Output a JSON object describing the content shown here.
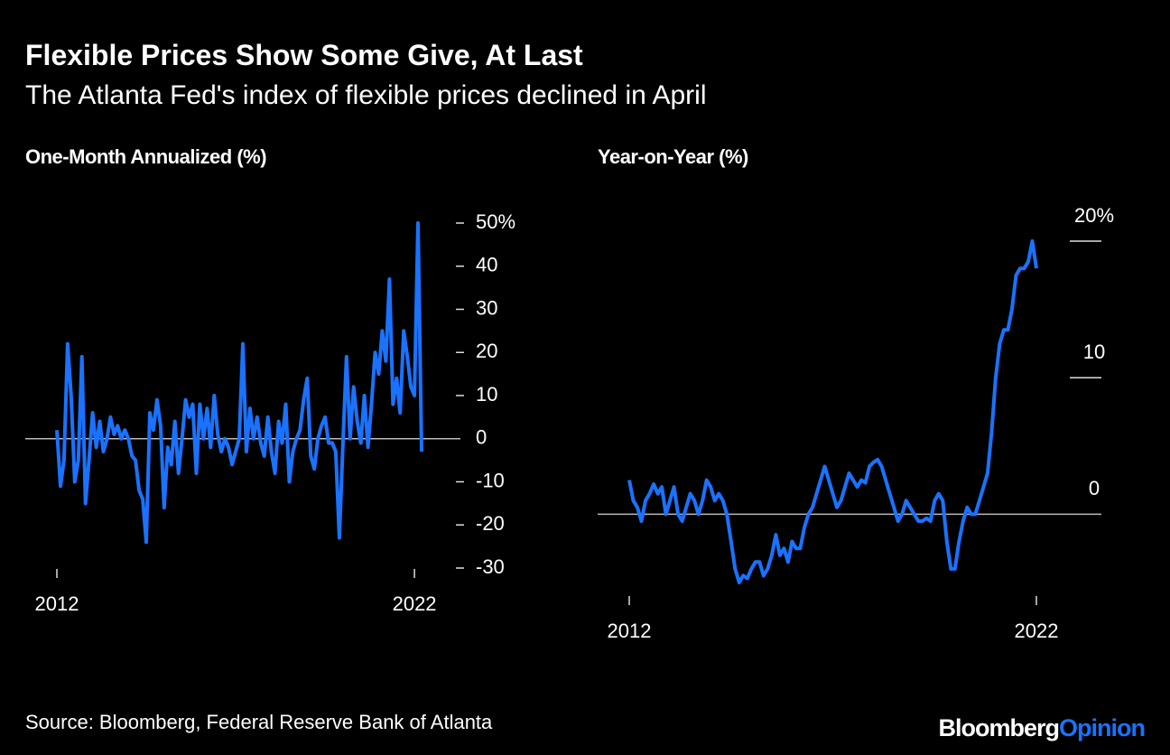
{
  "title": "Flexible Prices Show Some Give, At Last",
  "subtitle": "The Atlanta Fed's index of flexible prices declined in April",
  "source": "Source: Bloomberg, Federal Reserve Bank of Atlanta",
  "logo": {
    "name": "Bloomberg",
    "suffix": "Opinion"
  },
  "chart_data": [
    {
      "type": "line",
      "title": "One-Month Annualized (%)",
      "color": "#1a72ff",
      "x": [
        2012,
        2012.1,
        2012.2,
        2012.3,
        2012.4,
        2012.5,
        2012.6,
        2012.7,
        2012.8,
        2012.9,
        2013,
        2013.1,
        2013.2,
        2013.3,
        2013.4,
        2013.5,
        2013.6,
        2013.7,
        2013.8,
        2013.9,
        2014,
        2014.1,
        2014.2,
        2014.3,
        2014.4,
        2014.5,
        2014.6,
        2014.7,
        2014.8,
        2014.9,
        2015,
        2015.1,
        2015.2,
        2015.3,
        2015.4,
        2015.5,
        2015.6,
        2015.7,
        2015.8,
        2015.9,
        2016,
        2016.1,
        2016.2,
        2016.3,
        2016.4,
        2016.5,
        2016.6,
        2016.7,
        2016.8,
        2016.9,
        2017,
        2017.1,
        2017.2,
        2017.3,
        2017.4,
        2017.5,
        2017.6,
        2017.7,
        2017.8,
        2017.9,
        2018,
        2018.1,
        2018.2,
        2018.3,
        2018.4,
        2018.5,
        2018.6,
        2018.7,
        2018.8,
        2018.9,
        2019,
        2019.1,
        2019.2,
        2019.3,
        2019.4,
        2019.5,
        2019.6,
        2019.7,
        2019.8,
        2019.9,
        2020,
        2020.1,
        2020.2,
        2020.3,
        2020.4,
        2020.5,
        2020.6,
        2020.7,
        2020.8,
        2020.9,
        2021,
        2021.1,
        2021.2,
        2021.3,
        2021.4,
        2021.5,
        2021.6,
        2021.7,
        2021.8,
        2021.9,
        2022,
        2022.1,
        2022.2
      ],
      "values": [
        2,
        -11,
        -5,
        22,
        10,
        -10,
        -5,
        19,
        -15,
        -5,
        6,
        -2,
        4,
        -3,
        0,
        5,
        1,
        3,
        0,
        2,
        0,
        -4,
        -5,
        -12,
        -14,
        -24,
        6,
        2,
        9,
        3,
        -16,
        -2,
        -6,
        4,
        -8,
        0,
        9,
        5,
        8,
        -8,
        8,
        0,
        7,
        -2,
        10,
        1,
        -3,
        0,
        -2,
        -6,
        -3,
        0,
        22,
        -3,
        7,
        0,
        5,
        -1,
        -4,
        5,
        -3,
        -8,
        4,
        -1,
        8,
        -10,
        -3,
        0,
        2,
        9,
        14,
        -4,
        -7,
        0,
        3,
        5,
        -1,
        -1,
        -3,
        -23,
        -1,
        19,
        0,
        12,
        4,
        -1,
        10,
        -2,
        8,
        20,
        15,
        25,
        18,
        37,
        8,
        14,
        6,
        25,
        19,
        12,
        10,
        50,
        -3
      ],
      "xlim": [
        2012,
        2022.2
      ],
      "xticks": [
        2012,
        2022
      ],
      "ylim": [
        -30,
        50
      ],
      "yticks": [
        {
          "value": 50,
          "label": "50%"
        },
        40,
        30,
        20,
        10,
        0,
        -10,
        -20,
        -30
      ]
    },
    {
      "type": "line",
      "title": "Year-on-Year (%)",
      "color": "#1a72ff",
      "x": [
        2012,
        2012.1,
        2012.2,
        2012.3,
        2012.4,
        2012.5,
        2012.6,
        2012.7,
        2012.8,
        2012.9,
        2013,
        2013.1,
        2013.2,
        2013.3,
        2013.4,
        2013.5,
        2013.6,
        2013.7,
        2013.8,
        2013.9,
        2014,
        2014.1,
        2014.2,
        2014.3,
        2014.4,
        2014.5,
        2014.6,
        2014.7,
        2014.8,
        2014.9,
        2015,
        2015.1,
        2015.2,
        2015.3,
        2015.4,
        2015.5,
        2015.6,
        2015.7,
        2015.8,
        2015.9,
        2016,
        2016.1,
        2016.2,
        2016.3,
        2016.4,
        2016.5,
        2016.6,
        2016.7,
        2016.8,
        2016.9,
        2017,
        2017.1,
        2017.2,
        2017.3,
        2017.4,
        2017.5,
        2017.6,
        2017.7,
        2017.8,
        2017.9,
        2018,
        2018.1,
        2018.2,
        2018.3,
        2018.4,
        2018.5,
        2018.6,
        2018.7,
        2018.8,
        2018.9,
        2019,
        2019.1,
        2019.2,
        2019.3,
        2019.4,
        2019.5,
        2019.6,
        2019.7,
        2019.8,
        2019.9,
        2020,
        2020.1,
        2020.2,
        2020.3,
        2020.4,
        2020.5,
        2020.6,
        2020.7,
        2020.8,
        2020.9,
        2021,
        2021.1,
        2021.2,
        2021.3,
        2021.4,
        2021.5,
        2021.6,
        2021.7,
        2021.8,
        2021.9,
        2022
      ],
      "values": [
        2.5,
        1,
        0.5,
        -0.5,
        1,
        1.5,
        2.2,
        1.5,
        2,
        0,
        1,
        2,
        0,
        -0.5,
        0.5,
        1.5,
        1,
        0,
        1,
        2.5,
        2,
        1,
        1.5,
        1,
        0,
        -2,
        -4,
        -5,
        -4.5,
        -4.7,
        -4,
        -3.5,
        -3.5,
        -4.5,
        -4,
        -3,
        -1.5,
        -3,
        -2.5,
        -3.5,
        -2,
        -2.5,
        -2.5,
        -1,
        0,
        0.5,
        1.5,
        2.5,
        3.5,
        2.5,
        1.5,
        0.5,
        1,
        2,
        3,
        2.5,
        2,
        2.5,
        2.3,
        3.5,
        3.8,
        4,
        3.5,
        2.5,
        1.5,
        0.5,
        -0.5,
        0,
        1,
        0.5,
        0,
        -0.5,
        -0.5,
        -0.3,
        -0.5,
        1,
        1.5,
        1,
        -2,
        -4,
        -4,
        -2,
        -0.5,
        0.5,
        0,
        0,
        1,
        2,
        3,
        6,
        10,
        12.5,
        13.5,
        13.5,
        15,
        17.5,
        18,
        18,
        18.5,
        20,
        18
      ],
      "xlim": [
        2012,
        2022
      ],
      "xticks": [
        2012,
        2022
      ],
      "ylim": [
        -5,
        20
      ],
      "yticks": [
        {
          "value": 20,
          "label": "20%"
        },
        10,
        0
      ]
    }
  ]
}
